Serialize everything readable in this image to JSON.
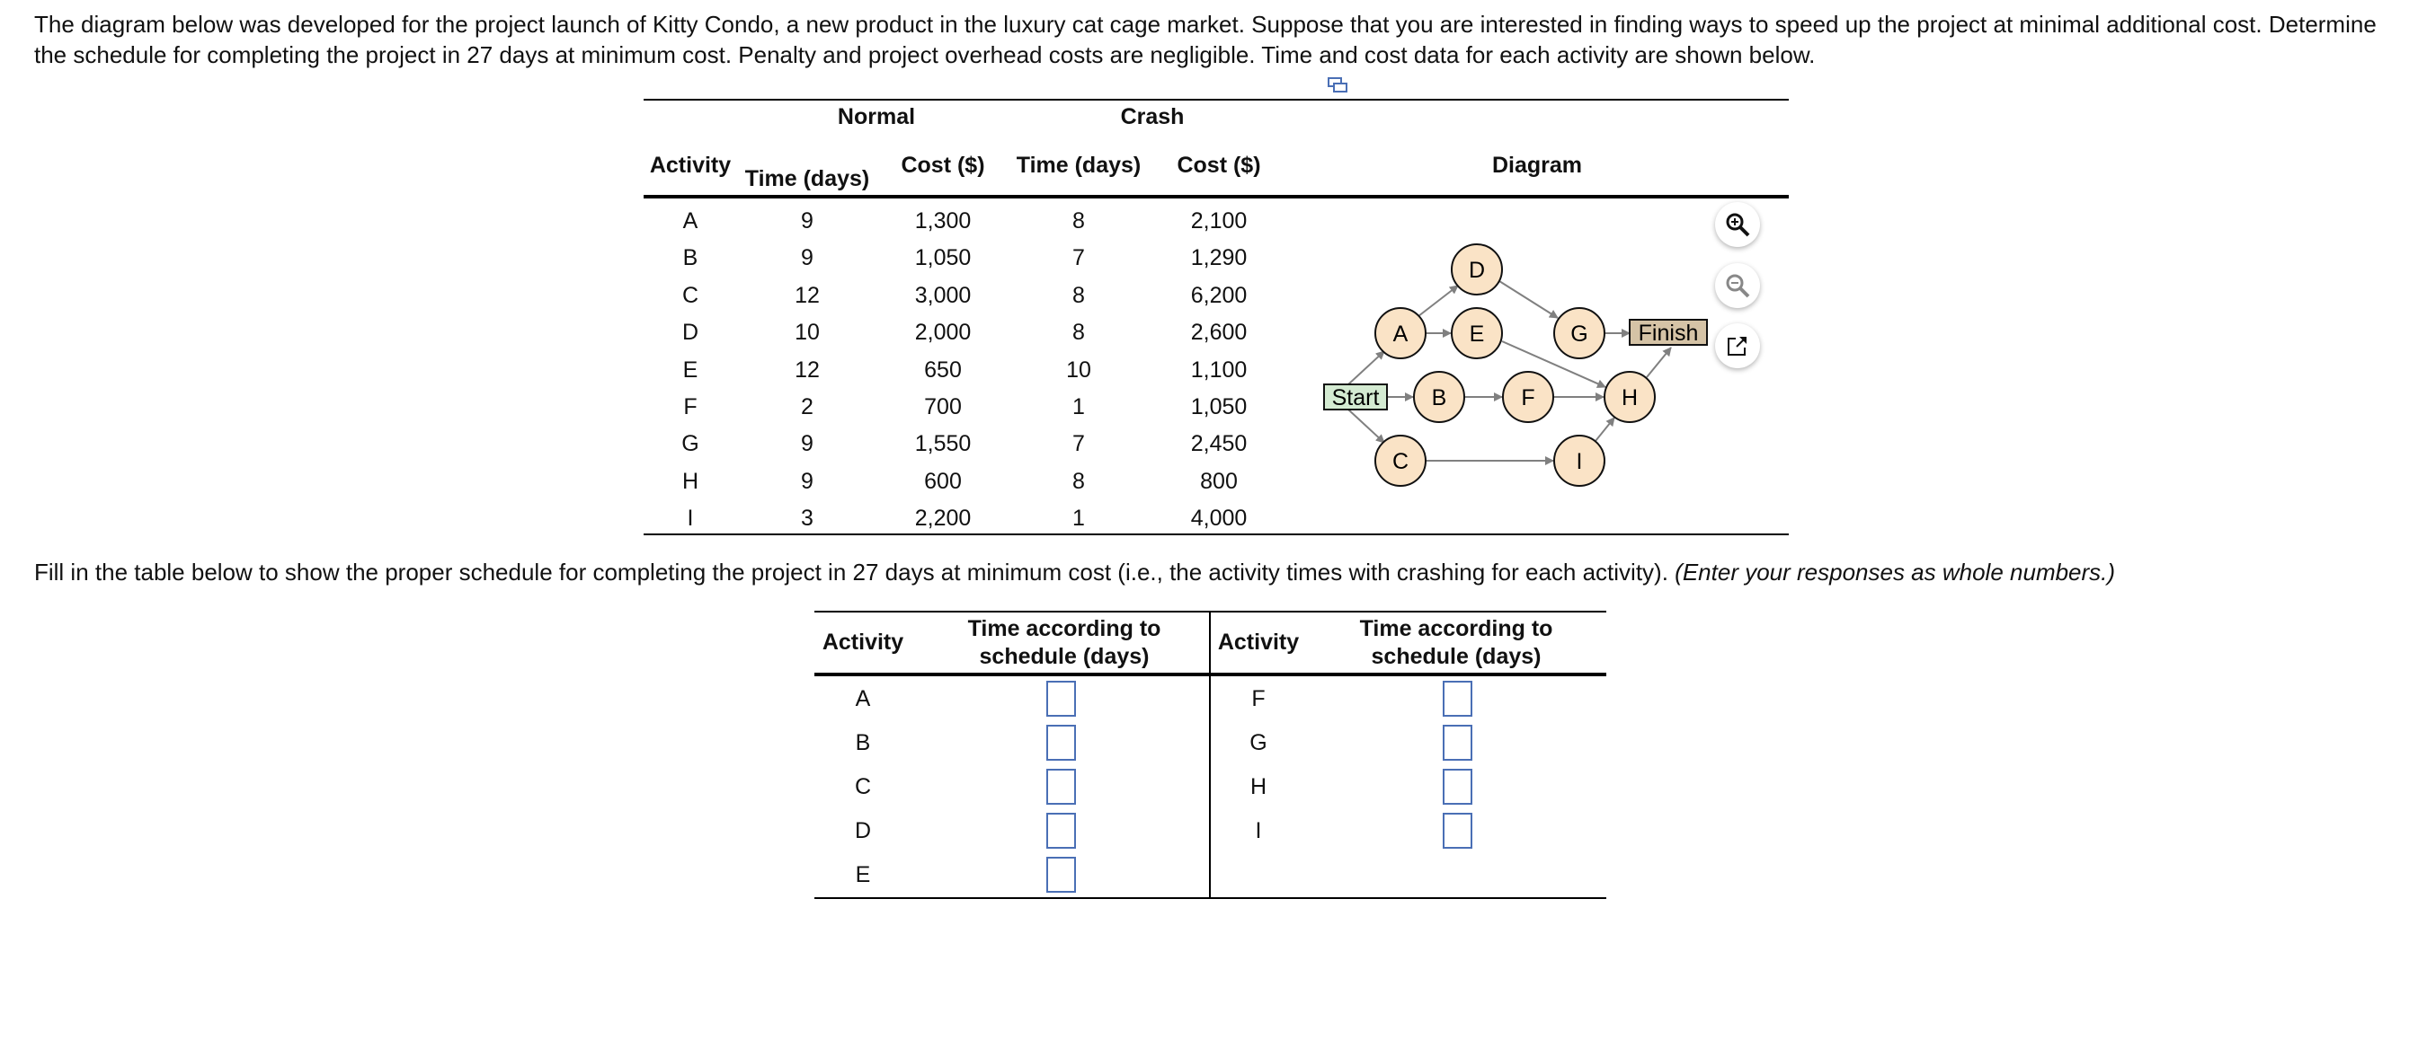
{
  "intro": "The diagram below was developed for the project launch of Kitty Condo, a new product in the luxury cat cage market. Suppose that you are interested in finding ways to speed up the project at minimal additional cost. Determine the schedule for completing the project in 27 days at minimum cost. Penalty and project overhead costs are negligible. Time and cost data for each activity are shown below.",
  "data_table": {
    "group_normal": "Normal",
    "group_crash": "Crash",
    "headers": [
      "Activity",
      "Time (days)",
      "Cost ($)",
      "Time (days)",
      "Cost ($)",
      "Diagram"
    ],
    "rows": [
      [
        "A",
        "9",
        "1,300",
        "8",
        "2,100"
      ],
      [
        "B",
        "9",
        "1,050",
        "7",
        "1,290"
      ],
      [
        "C",
        "12",
        "3,000",
        "8",
        "6,200"
      ],
      [
        "D",
        "10",
        "2,000",
        "8",
        "2,600"
      ],
      [
        "E",
        "12",
        "650",
        "10",
        "1,100"
      ],
      [
        "F",
        "2",
        "700",
        "1",
        "1,050"
      ],
      [
        "G",
        "9",
        "1,550",
        "7",
        "2,450"
      ],
      [
        "H",
        "9",
        "600",
        "8",
        "800"
      ],
      [
        "I",
        "3",
        "2,200",
        "1",
        "4,000"
      ]
    ]
  },
  "diagram": {
    "nodes": {
      "start": "Start",
      "finish": "Finish",
      "A": "A",
      "B": "B",
      "C": "C",
      "D": "D",
      "E": "E",
      "F": "F",
      "G": "G",
      "H": "H",
      "I": "I"
    },
    "colors": {
      "node": "#fae3c6",
      "start": "#d4ebd2",
      "finish": "#d5c3a6",
      "arrow": "#808080"
    }
  },
  "instruction": "Fill in the table below to show the proper schedule for completing the project in 27 days at minimum cost (i.e., the activity times with crashing for each activity).",
  "instruction_italic": "(Enter your responses as whole numbers.)",
  "answer_table": {
    "header_activity": "Activity",
    "header_time_1": "Time according to",
    "header_time_2": "schedule (days)",
    "left": [
      {
        "activity": "A",
        "value": ""
      },
      {
        "activity": "B",
        "value": ""
      },
      {
        "activity": "C",
        "value": ""
      },
      {
        "activity": "D",
        "value": ""
      },
      {
        "activity": "E",
        "value": ""
      }
    ],
    "right": [
      {
        "activity": "F",
        "value": ""
      },
      {
        "activity": "G",
        "value": ""
      },
      {
        "activity": "H",
        "value": ""
      },
      {
        "activity": "I",
        "value": ""
      }
    ]
  }
}
